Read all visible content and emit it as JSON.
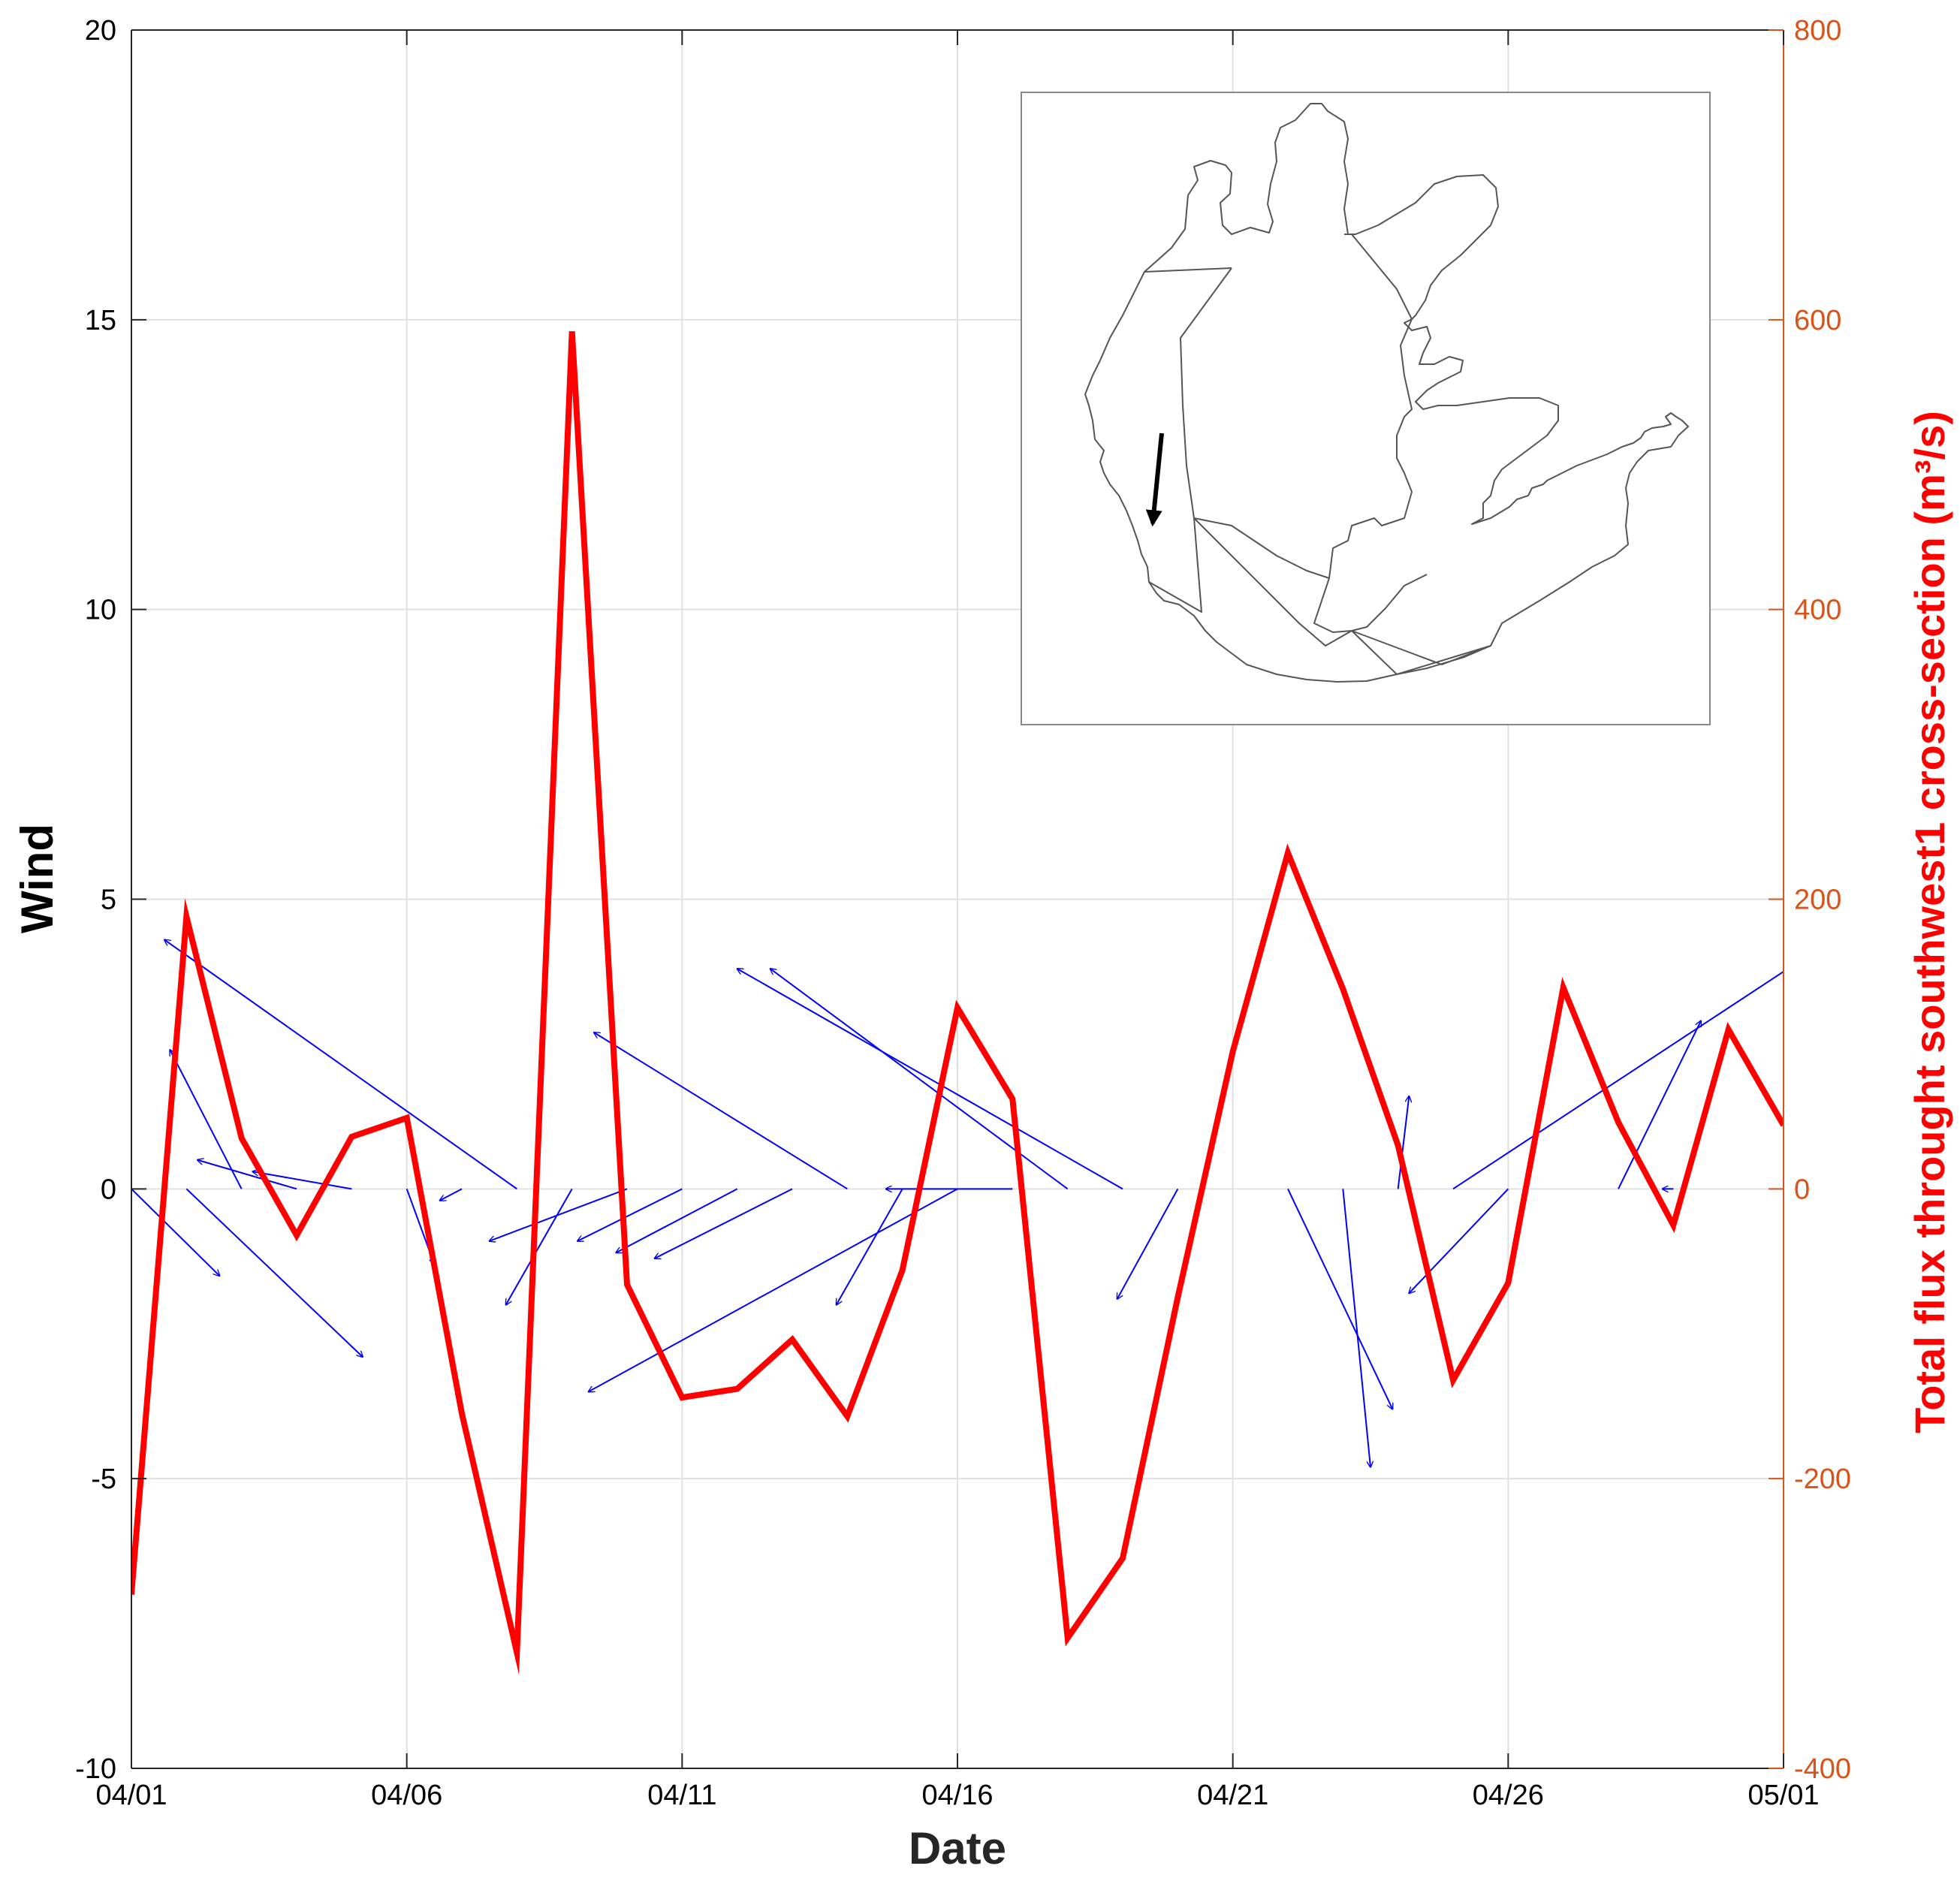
{
  "chart_data": {
    "type": "line",
    "xlabel": "Date",
    "ylabel_left": "Wind",
    "ylabel_right": "Total flux throught southwest1 cross-section (m³/s)",
    "xticks": [
      "04/01",
      "04/06",
      "04/11",
      "04/16",
      "04/21",
      "04/26",
      "05/01"
    ],
    "xlim_days": [
      0,
      30
    ],
    "ylim_left": [
      -10,
      20
    ],
    "yticks_left": [
      "-10",
      "-5",
      "0",
      "5",
      "10",
      "15",
      "20"
    ],
    "ylim_right": [
      -400,
      800
    ],
    "yticks_right": [
      "-400",
      "-200",
      "0",
      "200",
      "400",
      "600",
      "800"
    ],
    "grid": true,
    "colors": {
      "flux": "#ff0000",
      "wind": "#0000ff",
      "right_axis": "#d95319",
      "frame": "#262626",
      "grid": "#e0e0e0"
    },
    "series": [
      {
        "axis": "right",
        "style": "line",
        "x": [
          "04/01",
          "04/02",
          "04/03",
          "04/04",
          "04/05",
          "04/06",
          "04/07",
          "04/08",
          "04/09",
          "04/10",
          "04/11",
          "04/12",
          "04/13",
          "04/14",
          "04/15",
          "04/16",
          "04/17",
          "04/18",
          "04/19",
          "04/20",
          "04/21",
          "04/22",
          "04/23",
          "04/24",
          "04/25",
          "04/26",
          "04/27",
          "04/28",
          "04/29",
          "04/30",
          "05/01"
        ],
        "values": [
          -280,
          188,
          35,
          -32,
          36,
          49,
          -155,
          -320,
          592,
          -66,
          -144,
          -138,
          -104,
          -157,
          -56,
          125,
          62,
          -310,
          -255,
          -75,
          95,
          232,
          138,
          30,
          -132,
          -65,
          139,
          46,
          -25,
          110,
          44
        ]
      },
      {
        "name": "Wind",
        "axis": "left",
        "style": "quiver",
        "x": [
          "04/01",
          "04/02",
          "04/03",
          "04/04",
          "04/05",
          "04/06",
          "04/07",
          "04/08",
          "04/09",
          "04/10",
          "04/11",
          "04/12",
          "04/13",
          "04/14",
          "04/15",
          "04/16",
          "04/17",
          "04/18",
          "04/19",
          "04/20",
          "04/21",
          "04/22",
          "04/23",
          "04/24",
          "04/25",
          "04/26",
          "04/27",
          "04/28",
          "04/29",
          "04/30",
          "05/01"
        ],
        "u": [
          1.6,
          3.2,
          -1.3,
          -1.8,
          -1.8,
          0.5,
          -0.4,
          -6.4,
          -1.2,
          -2.5,
          -1.9,
          -2.2,
          -2.5,
          -4.6,
          -1.2,
          -6.7,
          -2.3,
          -5.4,
          -7.0,
          -1.1,
          0,
          1.9,
          0.5,
          0.2,
          8.0,
          -1.8,
          0,
          1.5,
          -0.2,
          0,
          0
        ],
        "v": [
          -1.5,
          -2.9,
          2.4,
          0.5,
          0.3,
          -1.3,
          -0.2,
          4.3,
          -2.0,
          -0.9,
          -0.9,
          -1.1,
          -1.2,
          2.7,
          -2.0,
          -3.5,
          0,
          3.8,
          3.8,
          -1.9,
          0,
          -3.8,
          -4.8,
          1.6,
          5.0,
          -1.8,
          0,
          2.9,
          0,
          0,
          0
        ]
      }
    ],
    "inset": {
      "type": "map",
      "arrow_direction": "south"
    }
  }
}
